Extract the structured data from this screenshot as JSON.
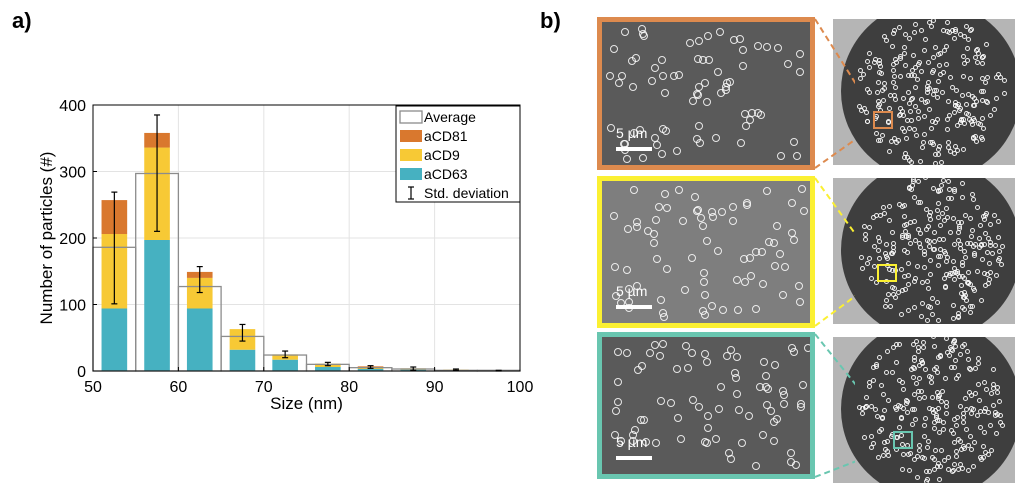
{
  "panels": {
    "a": "a)",
    "b": "b)"
  },
  "chart_data": {
    "type": "bar",
    "stacked": true,
    "xlabel": "Size (nm)",
    "ylabel": "Number of particles (#)",
    "xlim": [
      50,
      100
    ],
    "ylim": [
      0,
      400
    ],
    "xticks": [
      50,
      60,
      70,
      80,
      90,
      100
    ],
    "yticks": [
      0,
      100,
      200,
      300,
      400
    ],
    "grid": true,
    "legend_position": "top-right",
    "bin_width": 5,
    "bin_starts": [
      50,
      55,
      60,
      65,
      70,
      75,
      80,
      85,
      90,
      95
    ],
    "series": [
      {
        "name": "aCD63",
        "color": "#46b1c1",
        "values": [
          94,
          197,
          94,
          32,
          17,
          6,
          3,
          2,
          1,
          1
        ]
      },
      {
        "name": "aCD9",
        "color": "#f7c935",
        "values": [
          112,
          139,
          46,
          31,
          8,
          5,
          3,
          2,
          1,
          0
        ]
      },
      {
        "name": "aCD81",
        "color": "#d9782e",
        "values": [
          51,
          22,
          9,
          0,
          0,
          0,
          1,
          0,
          0,
          0
        ]
      }
    ],
    "average": {
      "name": "Average",
      "values": [
        186,
        297,
        127,
        52,
        24,
        10,
        5,
        3,
        1,
        1
      ]
    },
    "std_deviation": {
      "name": "Std. deviation",
      "low": [
        101,
        210,
        118,
        45,
        20,
        8,
        4,
        1,
        1,
        0
      ],
      "high": [
        269,
        385,
        157,
        70,
        30,
        13,
        8,
        6,
        3,
        1
      ]
    }
  },
  "micrographs": [
    {
      "color": "#dd8a4e",
      "scale_label": "5 µm"
    },
    {
      "color": "#fbf032",
      "scale_label": "5 µm"
    },
    {
      "color": "#69c6b0",
      "scale_label": "5 µm"
    }
  ]
}
